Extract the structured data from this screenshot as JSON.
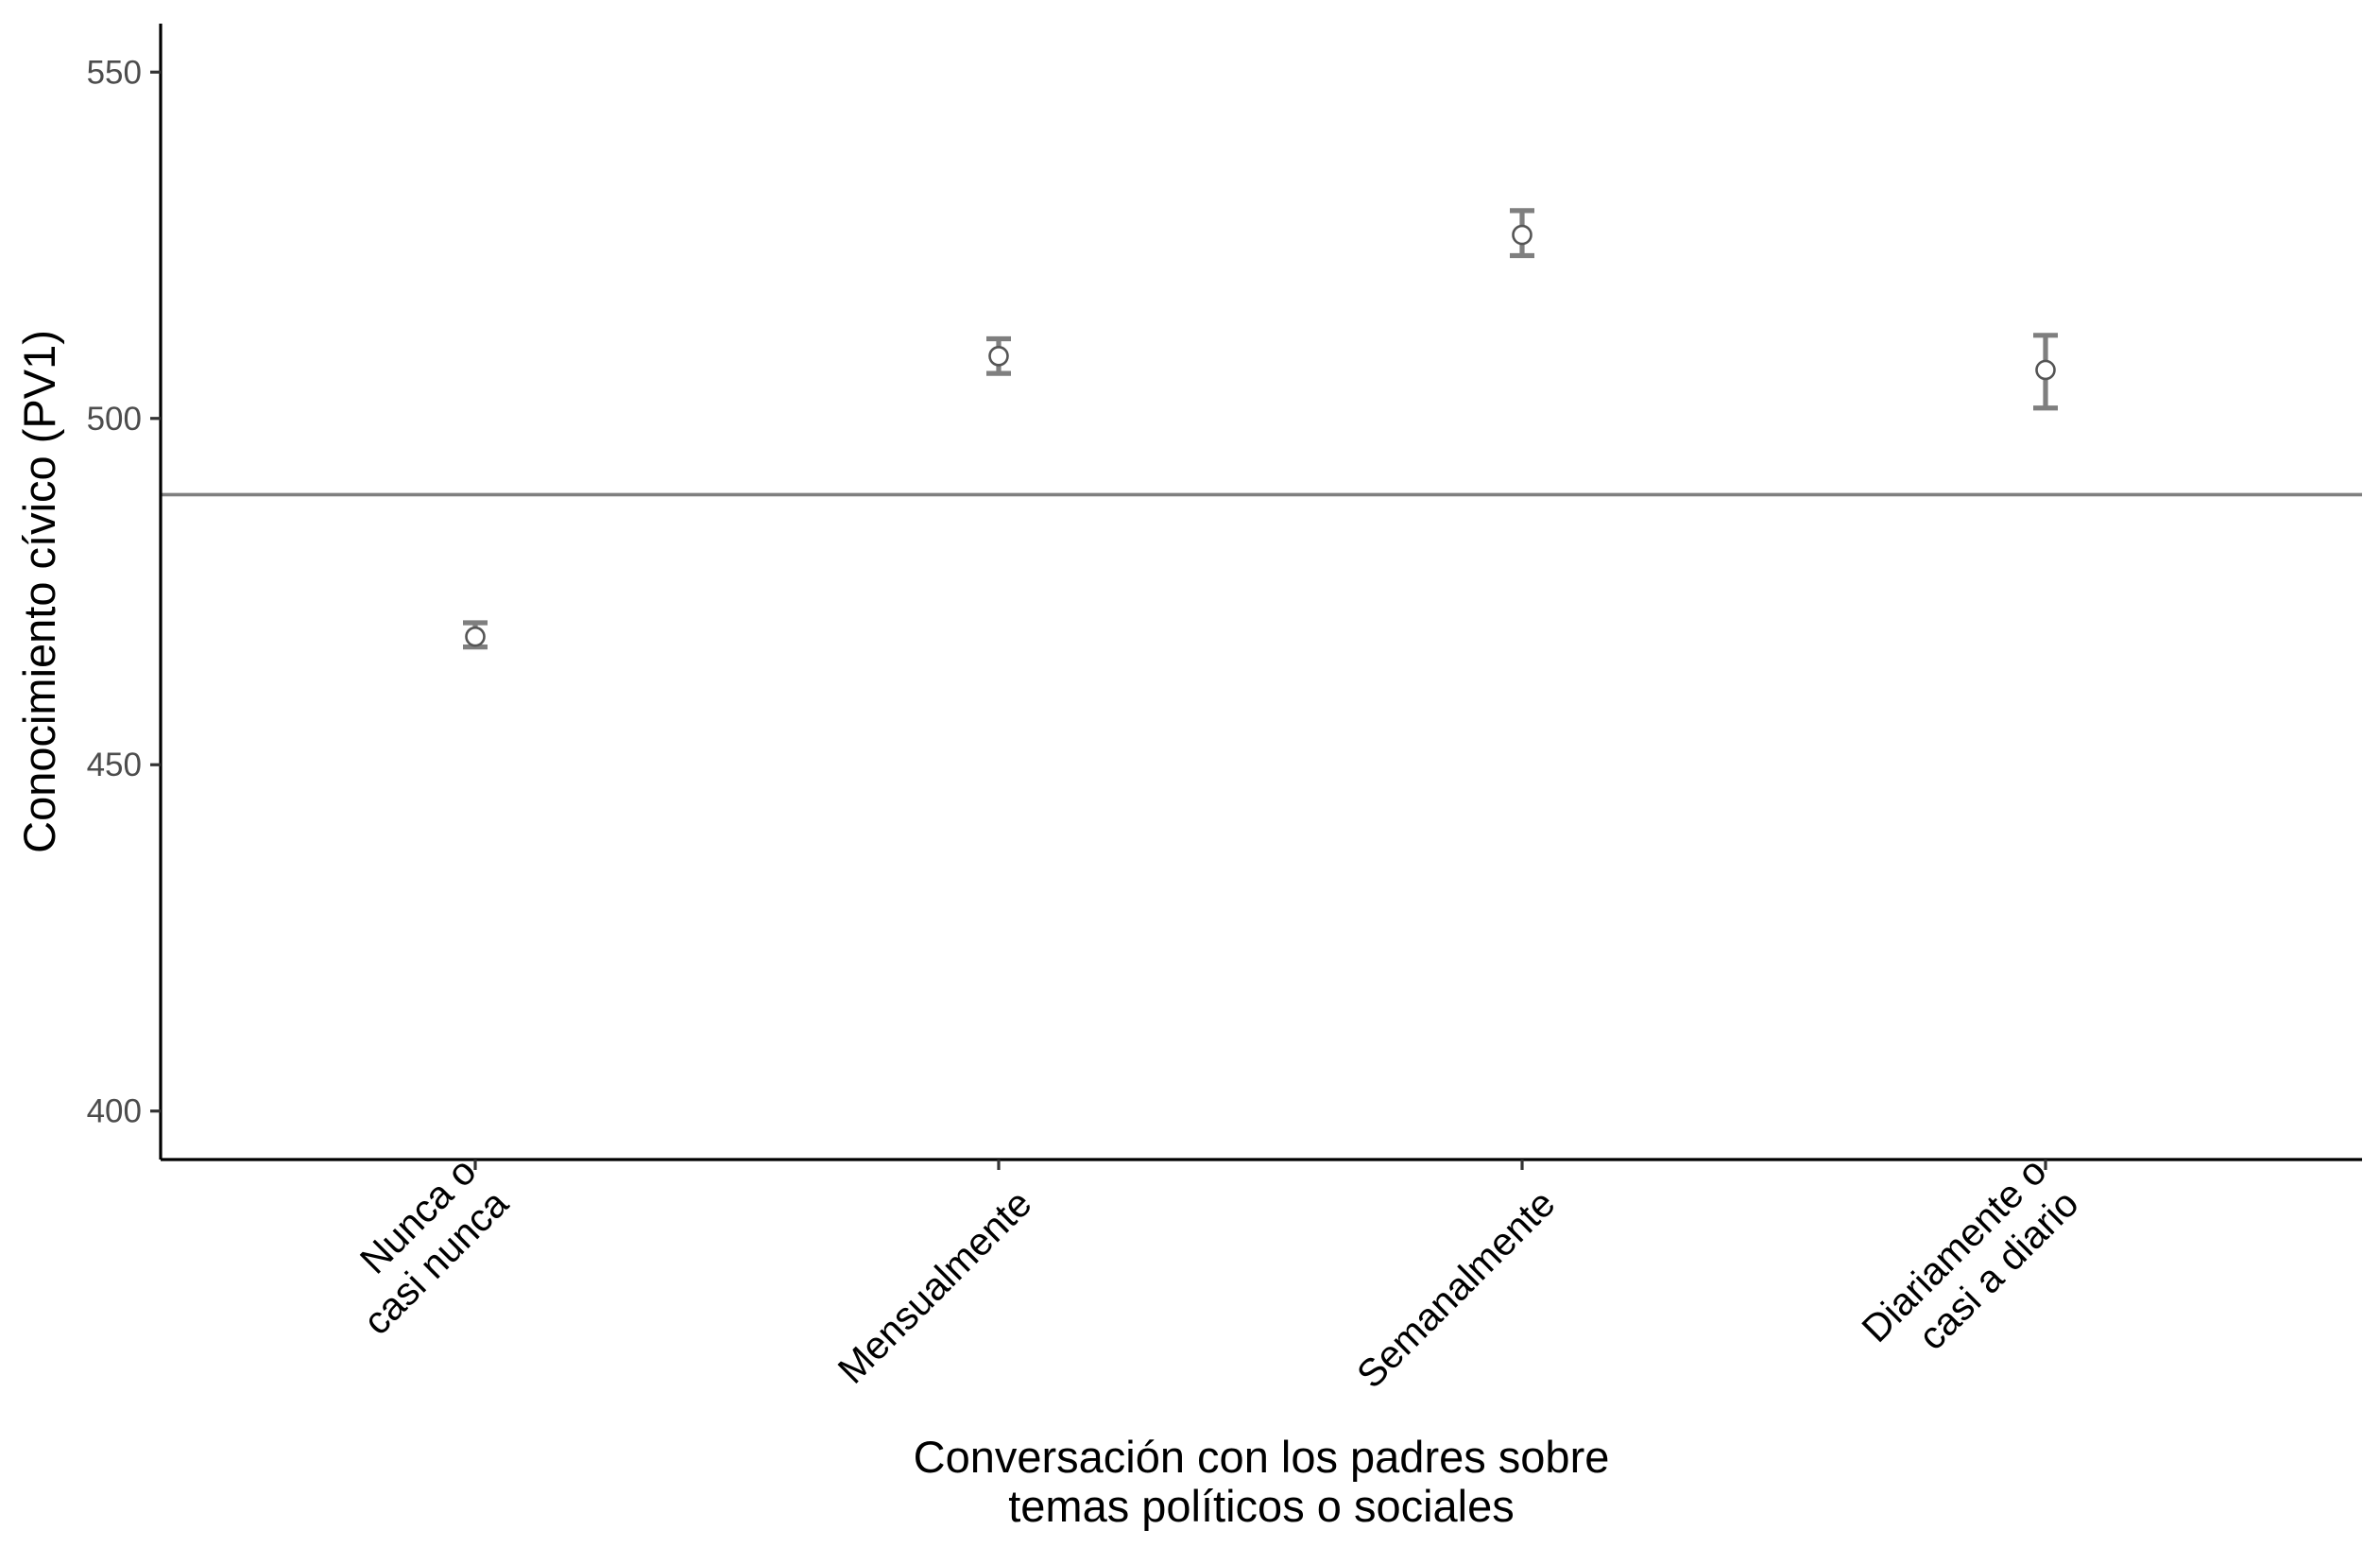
{
  "chart_data": {
    "type": "scatter",
    "xlabel": "Conversación con los padres sobre\ntemas políticos o sociales",
    "ylabel": "Conocimiento cívico (PV1)",
    "categories": [
      "Nunca o\ncasi nunca",
      "Mensualmente",
      "Semanalmente",
      "Diariamente o\ncasi a diario"
    ],
    "values": [
      468.5,
      509,
      526.5,
      507
    ],
    "error_low": [
      467,
      506.5,
      523.5,
      501.5
    ],
    "error_high": [
      470.5,
      511.5,
      530,
      512
    ],
    "reference_line": 489,
    "ylim": [
      393,
      557
    ],
    "yticks": [
      400,
      450,
      500,
      550
    ],
    "ytick_labels": [
      "400",
      "450",
      "500",
      "550"
    ],
    "grid": false,
    "legend": "none",
    "colors": {
      "error_bar": "#7f7f7f",
      "point_fill": "#ffffff",
      "point_stroke": "#555555",
      "reference_line": "#7f7f7f",
      "axis": "#000000"
    }
  }
}
